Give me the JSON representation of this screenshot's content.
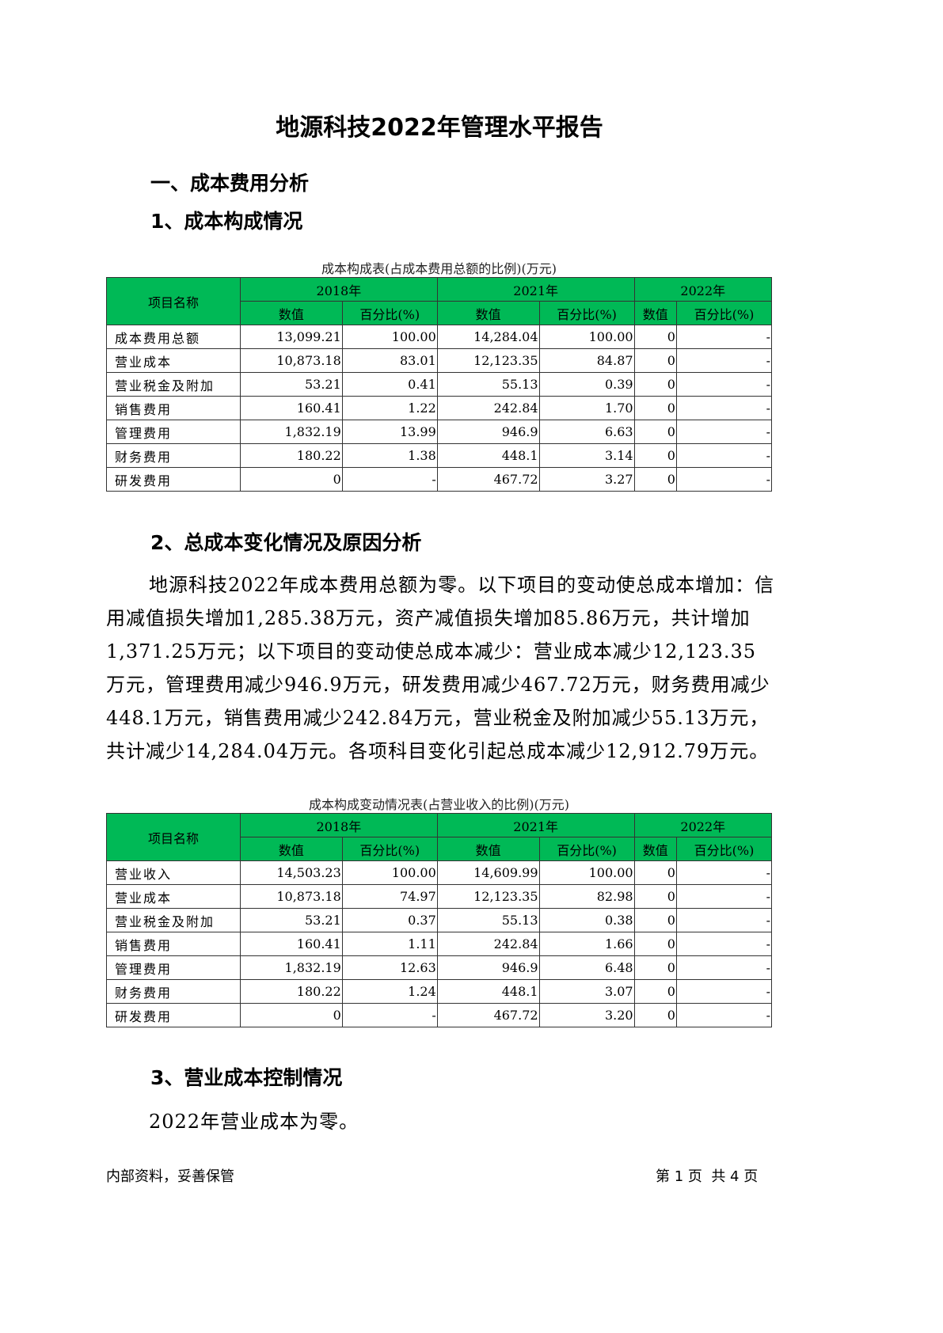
{
  "title": "地源科技2022年管理水平报告",
  "section1": "一、成本费用分析",
  "sub1": "1、成本构成情况",
  "table1": {
    "caption": "成本构成表(占成本费用总额的比例)(万元)",
    "name_header": "项目名称",
    "years": [
      "2018年",
      "2021年",
      "2022年"
    ],
    "value_header": "数值",
    "pct_header": "百分比(%)",
    "rows": [
      [
        "成本费用总额",
        "13,099.21",
        "100.00",
        "14,284.04",
        "100.00",
        "0",
        "-"
      ],
      [
        "营业成本",
        "10,873.18",
        "83.01",
        "12,123.35",
        "84.87",
        "0",
        "-"
      ],
      [
        "营业税金及附加",
        "53.21",
        "0.41",
        "55.13",
        "0.39",
        "0",
        "-"
      ],
      [
        "销售费用",
        "160.41",
        "1.22",
        "242.84",
        "1.70",
        "0",
        "-"
      ],
      [
        "管理费用",
        "1,832.19",
        "13.99",
        "946.9",
        "6.63",
        "0",
        "-"
      ],
      [
        "财务费用",
        "180.22",
        "1.38",
        "448.1",
        "3.14",
        "0",
        "-"
      ],
      [
        "研发费用",
        "0",
        "-",
        "467.72",
        "3.27",
        "0",
        "-"
      ]
    ]
  },
  "sub2": "2、总成本变化情况及原因分析",
  "para2": "地源科技2022年成本费用总额为零。以下项目的变动使总成本增加：信用减值损失增加1,285.38万元，资产减值损失增加85.86万元，共计增加1,371.25万元；以下项目的变动使总成本减少：营业成本减少12,123.35万元，管理费用减少946.9万元，研发费用减少467.72万元，财务费用减少448.1万元，销售费用减少242.84万元，营业税金及附加减少55.13万元，共计减少14,284.04万元。各项科目变化引起总成本减少12,912.79万元。",
  "table2": {
    "caption": "成本构成变动情况表(占营业收入的比例)(万元)",
    "name_header": "项目名称",
    "years": [
      "2018年",
      "2021年",
      "2022年"
    ],
    "value_header": "数值",
    "pct_header": "百分比(%)",
    "rows": [
      [
        "营业收入",
        "14,503.23",
        "100.00",
        "14,609.99",
        "100.00",
        "0",
        "-"
      ],
      [
        "营业成本",
        "10,873.18",
        "74.97",
        "12,123.35",
        "82.98",
        "0",
        "-"
      ],
      [
        "营业税金及附加",
        "53.21",
        "0.37",
        "55.13",
        "0.38",
        "0",
        "-"
      ],
      [
        "销售费用",
        "160.41",
        "1.11",
        "242.84",
        "1.66",
        "0",
        "-"
      ],
      [
        "管理费用",
        "1,832.19",
        "12.63",
        "946.9",
        "6.48",
        "0",
        "-"
      ],
      [
        "财务费用",
        "180.22",
        "1.24",
        "448.1",
        "3.07",
        "0",
        "-"
      ],
      [
        "研发费用",
        "0",
        "-",
        "467.72",
        "3.20",
        "0",
        "-"
      ]
    ]
  },
  "sub3": "3、营业成本控制情况",
  "para3": "2022年营业成本为零。",
  "footer": {
    "left": "内部资料，妥善保管",
    "right": "第 1 页  共 4 页"
  },
  "colors": {
    "header_green": "#00b956"
  }
}
